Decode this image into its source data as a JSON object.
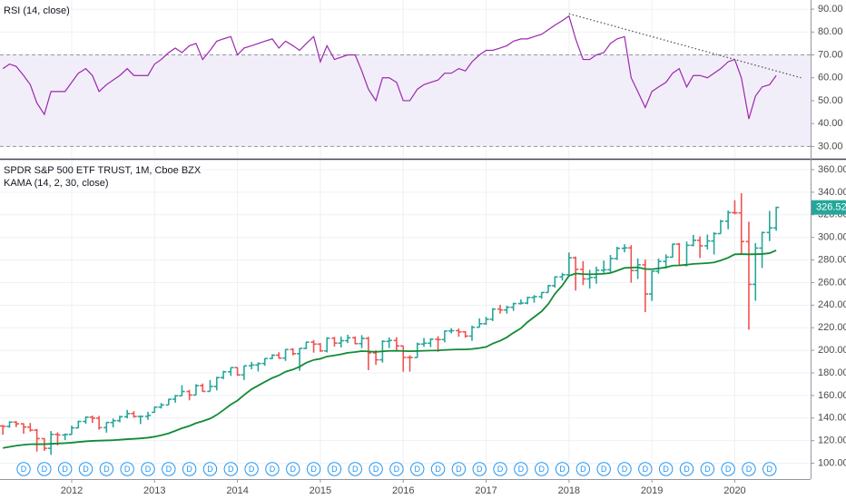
{
  "chart_data": [
    {
      "type": "line",
      "title": "RSI (14, close)",
      "color": "#9c27b0",
      "x": [
        2011.17,
        2011.25,
        2011.33,
        2011.42,
        2011.5,
        2011.58,
        2011.67,
        2011.75,
        2011.83,
        2011.92,
        2012,
        2012.08,
        2012.17,
        2012.25,
        2012.33,
        2012.42,
        2012.5,
        2012.58,
        2012.67,
        2012.75,
        2012.83,
        2012.92,
        2013,
        2013.08,
        2013.17,
        2013.25,
        2013.33,
        2013.42,
        2013.5,
        2013.58,
        2013.67,
        2013.75,
        2013.83,
        2013.92,
        2014,
        2014.08,
        2014.17,
        2014.25,
        2014.33,
        2014.42,
        2014.5,
        2014.58,
        2014.67,
        2014.75,
        2014.83,
        2014.92,
        2015,
        2015.08,
        2015.17,
        2015.25,
        2015.33,
        2015.42,
        2015.5,
        2015.58,
        2015.67,
        2015.75,
        2015.83,
        2015.92,
        2016,
        2016.08,
        2016.17,
        2016.25,
        2016.33,
        2016.42,
        2016.5,
        2016.58,
        2016.67,
        2016.75,
        2016.83,
        2016.92,
        2017,
        2017.08,
        2017.17,
        2017.25,
        2017.33,
        2017.42,
        2017.5,
        2017.58,
        2017.67,
        2017.75,
        2017.83,
        2017.92,
        2018,
        2018.08,
        2018.17,
        2018.25,
        2018.33,
        2018.42,
        2018.5,
        2018.58,
        2018.67,
        2018.75,
        2018.83,
        2018.92,
        2019,
        2019.08,
        2019.17,
        2019.25,
        2019.33,
        2019.42,
        2019.5,
        2019.58,
        2019.67,
        2019.75,
        2019.83,
        2019.92,
        2020,
        2020.08,
        2020.17,
        2020.25,
        2020.33,
        2020.42,
        2020.5
      ],
      "values": [
        64,
        66,
        65,
        61,
        57,
        49,
        44,
        54,
        54,
        54,
        58,
        62,
        64,
        61,
        54,
        57,
        59,
        61,
        64,
        61,
        61,
        61,
        66,
        68,
        71,
        73,
        71,
        74,
        75,
        68,
        72,
        76,
        77,
        78,
        70,
        73,
        74,
        75,
        76,
        77,
        73,
        76,
        74,
        72,
        75,
        78,
        67,
        74,
        68,
        69,
        70,
        70,
        63,
        55,
        50,
        60,
        60,
        58,
        50,
        50,
        55,
        57,
        58,
        59,
        62,
        62,
        64,
        63,
        67,
        70,
        72,
        72,
        73,
        74,
        76,
        77,
        77,
        78,
        79,
        81,
        83,
        85,
        87,
        77,
        68,
        68,
        70,
        71,
        75,
        77,
        78,
        60,
        54,
        47,
        54,
        56,
        58,
        62,
        64,
        56,
        61,
        61,
        60,
        62,
        64,
        67,
        68,
        60,
        42,
        52,
        56,
        57,
        61
      ],
      "trendline": {
        "x": [
          2018.0,
          2020.8
        ],
        "y": [
          88,
          60
        ],
        "color": "#555555"
      },
      "band": [
        30,
        70
      ],
      "band_color": "#7e57c2",
      "xlim": [
        2011.135,
        2020.915
      ],
      "xticks": [
        2012,
        2013,
        2014,
        2015,
        2016,
        2017,
        2018,
        2019,
        2020
      ],
      "ylim": [
        25,
        94
      ],
      "yticks": [
        {
          "value": 30,
          "label": "30.00"
        },
        {
          "value": 40,
          "label": "40.00"
        },
        {
          "value": 50,
          "label": "50.00"
        },
        {
          "value": 60,
          "label": "60.00"
        },
        {
          "value": 70,
          "label": "70.00"
        },
        {
          "value": 80,
          "label": "80.00"
        },
        {
          "value": 90,
          "label": "90.00"
        }
      ],
      "grid": true
    },
    {
      "type": "ohlc",
      "title": "SPDR S&P 500 ETF TRUST, 1M, Cboe BZX",
      "up_color": "#26a69a",
      "down_color": "#ef5350",
      "x": [
        2011.17,
        2011.25,
        2011.33,
        2011.42,
        2011.5,
        2011.58,
        2011.67,
        2011.75,
        2011.83,
        2011.92,
        2012,
        2012.08,
        2012.17,
        2012.25,
        2012.33,
        2012.42,
        2012.5,
        2012.58,
        2012.67,
        2012.75,
        2012.83,
        2012.92,
        2013,
        2013.08,
        2013.17,
        2013.25,
        2013.33,
        2013.42,
        2013.5,
        2013.58,
        2013.67,
        2013.75,
        2013.83,
        2013.92,
        2014,
        2014.08,
        2014.17,
        2014.25,
        2014.33,
        2014.42,
        2014.5,
        2014.58,
        2014.67,
        2014.75,
        2014.83,
        2014.92,
        2015,
        2015.08,
        2015.17,
        2015.25,
        2015.33,
        2015.42,
        2015.5,
        2015.58,
        2015.67,
        2015.75,
        2015.83,
        2015.92,
        2016,
        2016.08,
        2016.17,
        2016.25,
        2016.33,
        2016.42,
        2016.5,
        2016.58,
        2016.67,
        2016.75,
        2016.83,
        2016.92,
        2017,
        2017.08,
        2017.17,
        2017.25,
        2017.33,
        2017.42,
        2017.5,
        2017.58,
        2017.67,
        2017.75,
        2017.83,
        2017.92,
        2018,
        2018.08,
        2018.17,
        2018.25,
        2018.33,
        2018.42,
        2018.5,
        2018.58,
        2018.67,
        2018.75,
        2018.83,
        2018.92,
        2019,
        2019.08,
        2019.17,
        2019.25,
        2019.33,
        2019.42,
        2019.5,
        2019.58,
        2019.67,
        2019.75,
        2019.83,
        2019.92,
        2020,
        2020.08,
        2020.17,
        2020.25,
        2020.33,
        2020.42,
        2020.5
      ],
      "open": [
        133.0,
        132.6,
        136.4,
        134.9,
        132.0,
        129.3,
        121.8,
        113.2,
        125.5,
        125.0,
        125.5,
        131.3,
        137.0,
        140.8,
        139.9,
        131.5,
        136.1,
        137.7,
        141.2,
        144.0,
        141.4,
        141.5,
        145.1,
        149.7,
        151.6,
        156.7,
        159.7,
        163.5,
        160.4,
        168.7,
        163.6,
        168.0,
        175.8,
        181.0,
        184.7,
        178.2,
        186.3,
        187.0,
        188.3,
        192.7,
        195.7,
        193.1,
        200.7,
        197.0,
        201.7,
        207.2,
        205.5,
        199.5,
        210.7,
        206.4,
        208.5,
        211.1,
        205.9,
        210.5,
        197.7,
        191.6,
        207.9,
        208.7,
        203.9,
        193.7,
        193.6,
        205.5,
        206.3,
        209.8,
        209.5,
        217.1,
        217.4,
        216.3,
        212.6,
        220.4,
        223.5,
        227.5,
        236.5,
        235.7,
        238.1,
        241.4,
        241.8,
        246.8,
        247.5,
        251.2,
        257.2,
        265.0,
        266.9,
        281.9,
        271.7,
        263.2,
        264.5,
        270.9,
        271.3,
        281.3,
        290.3,
        290.7,
        270.6,
        275.7,
        249.9,
        270.0,
        278.7,
        282.5,
        294.0,
        275.3,
        293.0,
        297.4,
        292.5,
        296.8,
        303.3,
        314.3,
        321.9,
        321.7,
        296.3,
        258.4,
        290.5,
        304.3,
        308.4
      ],
      "high": [
        133.8,
        137.2,
        137.3,
        135.4,
        135.7,
        130.4,
        122.2,
        128.5,
        127.4,
        126.4,
        133.3,
        137.6,
        141.4,
        142.2,
        141.9,
        136.4,
        139.6,
        142.1,
        147.2,
        146.1,
        142.2,
        145.6,
        150.3,
        153.3,
        156.9,
        160.5,
        169.1,
        165.0,
        170.0,
        170.6,
        173.6,
        176.5,
        181.8,
        184.7,
        184.9,
        186.5,
        189.7,
        189.4,
        193.0,
        196.5,
        198.3,
        201.0,
        201.9,
        201.9,
        207.6,
        209.1,
        206.4,
        211.6,
        211.9,
        212.2,
        213.8,
        212.3,
        213.4,
        212.0,
        200.2,
        208.9,
        211.4,
        211.6,
        204.0,
        195.6,
        206.9,
        210.9,
        210.7,
        212.5,
        217.5,
        219.6,
        219.2,
        217.1,
        221.8,
        228.3,
        229.7,
        237.3,
        240.3,
        239.5,
        242.1,
        245.0,
        247.5,
        248.9,
        251.3,
        258.0,
        265.5,
        268.6,
        286.6,
        283.1,
        279.0,
        271.3,
        274.0,
        279.5,
        284.4,
        291.7,
        293.9,
        293.2,
        281.3,
        280.4,
        270.5,
        281.3,
        285.0,
        294.5,
        295.0,
        296.3,
        302.2,
        300.9,
        302.5,
        304.6,
        315.5,
        323.8,
        332.9,
        339.1,
        313.8,
        294.9,
        305.0,
        323.4,
        327.2
      ],
      "low": [
        125.3,
        131.4,
        131.9,
        126.1,
        128.0,
        110.3,
        110.9,
        107.4,
        115.8,
        120.5,
        125.3,
        131.0,
        135.0,
        135.7,
        129.7,
        127.1,
        131.8,
        136.2,
        139.7,
        140.3,
        134.7,
        138.4,
        144.7,
        148.4,
        151.6,
        153.6,
        159.4,
        155.7,
        160.3,
        163.1,
        163.6,
        164.5,
        174.5,
        177.3,
        177.4,
        173.7,
        183.2,
        181.3,
        186.3,
        192.1,
        192.5,
        190.6,
        195.5,
        181.9,
        201.1,
        197.9,
        198.6,
        198.1,
        203.3,
        202.5,
        206.4,
        205.3,
        202.0,
        182.4,
        187.1,
        189.1,
        202.0,
        199.8,
        181.0,
        181.1,
        193.5,
        203.1,
        202.8,
        198.7,
        207.1,
        215.0,
        212.0,
        211.2,
        208.4,
        220.3,
        222.7,
        225.9,
        232.5,
        232.5,
        234.9,
        240.5,
        240.8,
        242.2,
        245.6,
        251.2,
        255.5,
        261.8,
        266.8,
        252.9,
        257.8,
        254.7,
        259.0,
        268.5,
        269.0,
        280.0,
        286.7,
        259.9,
        263.2,
        233.8,
        243.7,
        267.8,
        272.4,
        282.0,
        275.0,
        274.3,
        292.1,
        281.7,
        289.3,
        284.8,
        303.2,
        307.1,
        320.4,
        285.5,
        218.3,
        243.9,
        272.9,
        296.7,
        305.8
      ],
      "close": [
        132.6,
        136.4,
        134.9,
        132.0,
        129.3,
        121.8,
        113.2,
        125.5,
        125.0,
        125.5,
        131.3,
        137.0,
        140.8,
        139.9,
        131.5,
        136.1,
        137.7,
        141.2,
        144.0,
        141.4,
        141.5,
        142.4,
        149.7,
        151.6,
        156.7,
        159.7,
        163.5,
        160.4,
        168.7,
        163.6,
        168.0,
        175.8,
        181.0,
        184.7,
        178.2,
        186.3,
        187.0,
        188.3,
        192.7,
        195.7,
        193.1,
        200.7,
        197.0,
        201.7,
        207.2,
        205.5,
        199.5,
        210.7,
        206.4,
        208.5,
        211.1,
        205.9,
        210.5,
        197.7,
        191.6,
        207.9,
        208.7,
        203.9,
        193.7,
        193.6,
        205.5,
        206.3,
        209.8,
        209.5,
        217.1,
        217.4,
        216.3,
        212.6,
        220.4,
        223.5,
        227.5,
        236.5,
        235.7,
        238.1,
        241.4,
        241.8,
        246.8,
        247.5,
        251.2,
        257.2,
        265.0,
        266.9,
        281.9,
        271.7,
        263.2,
        264.5,
        270.9,
        271.3,
        281.3,
        290.3,
        290.7,
        270.6,
        275.7,
        249.9,
        270.0,
        278.7,
        282.5,
        294.0,
        275.3,
        293.0,
        297.4,
        292.5,
        296.8,
        303.3,
        314.3,
        321.9,
        321.7,
        296.3,
        258.4,
        290.5,
        304.3,
        308.4,
        326.52
      ],
      "series": [
        {
          "name": "KAMA (14, 2, 30, close)",
          "color": "#138a36",
          "values": [
            113.5,
            114.5,
            115.5,
            116.3,
            116.8,
            116.9,
            116.9,
            117.2,
            117.5,
            117.8,
            118.2,
            118.8,
            119.4,
            119.8,
            120.0,
            120.2,
            120.4,
            120.8,
            121.3,
            121.6,
            122.0,
            122.6,
            123.5,
            124.8,
            126.5,
            128.7,
            131.0,
            133.0,
            135.5,
            137.2,
            139.5,
            142.8,
            147.0,
            152.0,
            155.5,
            160.5,
            165.5,
            168.8,
            172.0,
            175.5,
            177.8,
            181.0,
            183.0,
            185.5,
            189.0,
            191.5,
            192.5,
            194.5,
            195.5,
            196.5,
            197.8,
            198.5,
            199.3,
            199.0,
            198.6,
            199.1,
            199.5,
            199.6,
            199.4,
            199.2,
            199.4,
            199.6,
            199.8,
            199.9,
            200.3,
            200.6,
            200.8,
            200.8,
            201.2,
            202.0,
            203.0,
            206.0,
            208.5,
            211.5,
            215.5,
            219.5,
            225.0,
            229.5,
            234.5,
            241.0,
            250.0,
            257.5,
            266.0,
            268.0,
            267.5,
            267.3,
            267.5,
            267.8,
            268.5,
            270.5,
            273.0,
            273.2,
            273.5,
            272.0,
            271.8,
            272.5,
            273.5,
            275.0,
            275.2,
            275.8,
            276.5,
            276.8,
            277.2,
            277.8,
            279.5,
            282.0,
            285.0,
            285.2,
            285.0,
            285.1,
            285.3,
            286.0,
            288.5
          ]
        }
      ],
      "dividends": {
        "label": "D",
        "color": "#2196f3",
        "x": [
          2011.42,
          2011.67,
          2011.92,
          2012.17,
          2012.42,
          2012.67,
          2012.92,
          2013.17,
          2013.42,
          2013.67,
          2013.92,
          2014.17,
          2014.42,
          2014.67,
          2014.92,
          2015.17,
          2015.42,
          2015.67,
          2015.92,
          2016.17,
          2016.42,
          2016.67,
          2016.92,
          2017.17,
          2017.42,
          2017.67,
          2017.92,
          2018.17,
          2018.42,
          2018.67,
          2018.92,
          2019.17,
          2019.42,
          2019.67,
          2019.92,
          2020.17,
          2020.42
        ]
      },
      "xlim": [
        2011.135,
        2020.915
      ],
      "xticks": [
        2012,
        2013,
        2014,
        2015,
        2016,
        2017,
        2018,
        2019,
        2020
      ],
      "ylim": [
        86,
        368
      ],
      "yticks": [
        {
          "value": 100,
          "label": "100.00"
        },
        {
          "value": 120,
          "label": "120.00"
        },
        {
          "value": 140,
          "label": "140.00"
        },
        {
          "value": 160,
          "label": "160.00"
        },
        {
          "value": 180,
          "label": "180.00"
        },
        {
          "value": 200,
          "label": "200.00"
        },
        {
          "value": 220,
          "label": "220.00"
        },
        {
          "value": 240,
          "label": "240.00"
        },
        {
          "value": 260,
          "label": "260.00"
        },
        {
          "value": 280,
          "label": "280.00"
        },
        {
          "value": 300,
          "label": "300.00"
        },
        {
          "value": 320,
          "label": "320.00"
        },
        {
          "value": 340,
          "label": "340.00"
        },
        {
          "value": 360,
          "label": "360.00"
        }
      ],
      "grid": true
    }
  ]
}
